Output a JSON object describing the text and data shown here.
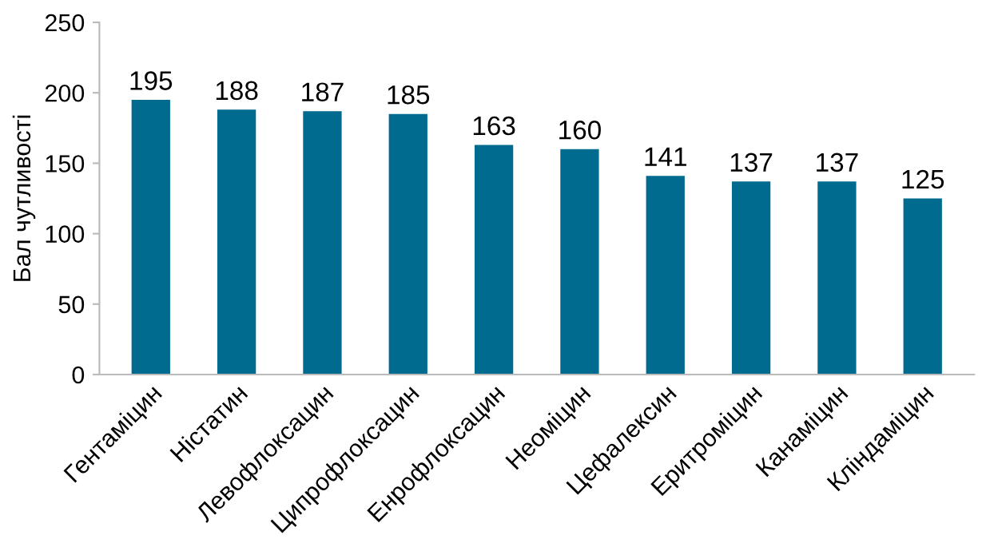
{
  "chart_data": {
    "type": "bar",
    "ylabel": "Бал чутливості",
    "categories": [
      "Гентаміцин",
      "Ністатин",
      "Левофлоксацин",
      "Ципрофлоксацин",
      "Енрофлоксацин",
      "Неоміцин",
      "Цефалексин",
      "Еритроміцин",
      "Канаміцин",
      "Кліндаміцин"
    ],
    "values": [
      195,
      188,
      187,
      185,
      163,
      160,
      141,
      137,
      137,
      125
    ],
    "color": "#006b8f",
    "ylim": [
      0,
      250
    ],
    "yticks": [
      0,
      50,
      100,
      150,
      200,
      250
    ],
    "data_labels": true,
    "grid": false,
    "legend": false
  }
}
